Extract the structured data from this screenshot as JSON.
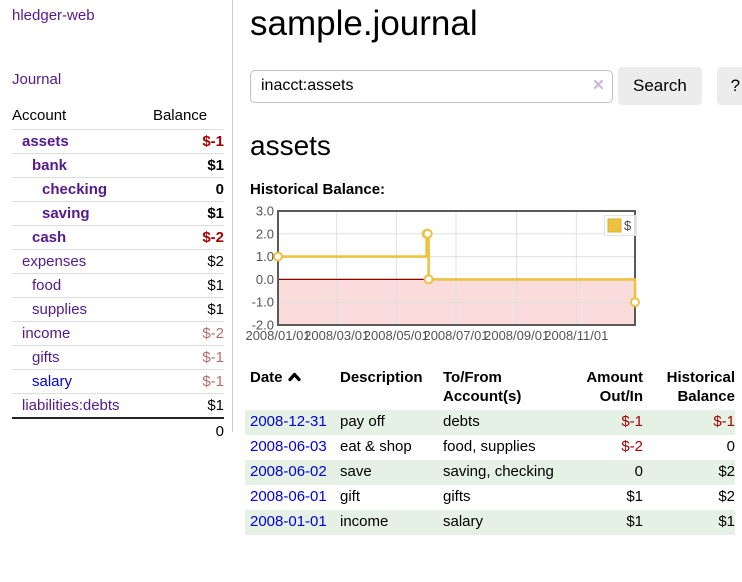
{
  "header": {
    "title": "sample.journal"
  },
  "sidebar": {
    "app_title": "hledger-web",
    "journal_link": "Journal",
    "accounts_table": {
      "headers": [
        "Account",
        "Balance"
      ],
      "rows": [
        {
          "name": "assets",
          "depth": 1,
          "bold": true,
          "balance": "$-1",
          "balance_style": "negative-strong"
        },
        {
          "name": "bank",
          "depth": 2,
          "bold": true,
          "balance": "$1",
          "balance_style": "normal"
        },
        {
          "name": "checking",
          "depth": 3,
          "bold": true,
          "balance": "0",
          "balance_style": "normal"
        },
        {
          "name": "saving",
          "depth": 3,
          "bold": true,
          "balance": "$1",
          "balance_style": "normal"
        },
        {
          "name": "cash",
          "depth": 2,
          "bold": true,
          "balance": "$-2",
          "balance_style": "negative-strong"
        },
        {
          "name": "expenses",
          "depth": 1,
          "bold": false,
          "balance": "$2",
          "balance_style": "normal"
        },
        {
          "name": "food",
          "depth": 2,
          "bold": false,
          "balance": "$1",
          "balance_style": "normal"
        },
        {
          "name": "supplies",
          "depth": 2,
          "bold": false,
          "balance": "$1",
          "balance_style": "normal"
        },
        {
          "name": "income",
          "depth": 1,
          "bold": false,
          "balance": "$-2",
          "balance_style": "negative-muted"
        },
        {
          "name": "gifts",
          "depth": 2,
          "bold": false,
          "balance": "$-1",
          "balance_style": "negative-muted"
        },
        {
          "name": "salary",
          "depth": 2,
          "bold": false,
          "link_color": "blue",
          "balance": "$-1",
          "balance_style": "negative-muted"
        },
        {
          "name": "liabilities:debts",
          "depth": 1,
          "bold": false,
          "balance": "$1",
          "balance_style": "normal"
        }
      ],
      "total": "0"
    }
  },
  "search": {
    "value": "inacct:assets",
    "clear_icon": "×",
    "button_label": "Search",
    "help_label": "?"
  },
  "main": {
    "account_heading": "assets",
    "chart_title": "Historical Balance:"
  },
  "chart_data": {
    "type": "line",
    "title": "Historical Balance:",
    "step": true,
    "series": [
      {
        "name": "$",
        "color": "#edc240",
        "points": [
          [
            "2008-01-01",
            1
          ],
          [
            "2008-06-01",
            2
          ],
          [
            "2008-06-02",
            2
          ],
          [
            "2008-06-03",
            0
          ],
          [
            "2008-12-31",
            -1
          ]
        ]
      }
    ],
    "x_ticks": [
      "2008/01/01",
      "2008/03/01",
      "2008/05/01",
      "2008/07/01",
      "2008/09/01",
      "2008/11/01"
    ],
    "y_ticks": [
      "3.0",
      "2.0",
      "1.0",
      "0.0",
      "-1.0",
      "-2.0"
    ],
    "ylim": [
      -2,
      3
    ],
    "x_range_dates": [
      "2008-01-01",
      "2008-12-31"
    ],
    "grid": true,
    "legend_position": "top-right",
    "legend_label": "$"
  },
  "register": {
    "columns": [
      "Date",
      "Description",
      "To/From Account(s)",
      "Amount Out/In",
      "Historical Balance"
    ],
    "sort_column": "Date",
    "sort_direction": "ascending",
    "rows": [
      {
        "date": "2008-12-31",
        "description": "pay off",
        "accounts": "debts",
        "amount": "$-1",
        "amount_negative": true,
        "balance": "$-1",
        "balance_negative": true
      },
      {
        "date": "2008-06-03",
        "description": "eat & shop",
        "accounts": "food, supplies",
        "amount": "$-2",
        "amount_negative": true,
        "balance": "0",
        "balance_negative": false
      },
      {
        "date": "2008-06-02",
        "description": "save",
        "accounts": "saving, checking",
        "amount": "0",
        "amount_negative": false,
        "balance": "$2",
        "balance_negative": false
      },
      {
        "date": "2008-06-01",
        "description": "gift",
        "accounts": "gifts",
        "amount": "$1",
        "amount_negative": false,
        "balance": "$2",
        "balance_negative": false
      },
      {
        "date": "2008-01-01",
        "description": "income",
        "accounts": "salary",
        "amount": "$1",
        "amount_negative": false,
        "balance": "$1",
        "balance_negative": false
      }
    ]
  },
  "colors": {
    "link_purple": "#551a8b",
    "link_blue": "#0000dd",
    "negative_strong": "#a40000",
    "negative_muted": "#b76d6d",
    "row_stripe_green": "#e4f1e4",
    "chart_line_gold": "#edc240",
    "chart_negative_fill": "#fadcdc",
    "chart_zero_line": "#8b0000",
    "chart_border": "#5a5a5a",
    "chart_grid": "#e0e0e0",
    "chart_tick_text": "#545454",
    "button_bg": "#ececec",
    "divider": "#cccccc"
  }
}
